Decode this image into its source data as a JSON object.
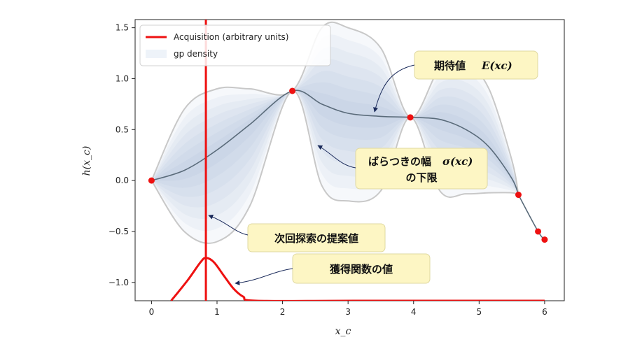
{
  "chart_data": {
    "type": "line",
    "title": "",
    "xlabel": "x_c",
    "ylabel": "h(x_c)",
    "xlim": [
      -0.25,
      6.3
    ],
    "ylim": [
      -1.18,
      1.58
    ],
    "xticks": [
      0,
      1,
      2,
      3,
      4,
      5,
      6
    ],
    "yticks": [
      -1.0,
      -0.5,
      0.0,
      0.5,
      1.0,
      1.5
    ],
    "xtick_labels": [
      "0",
      "1",
      "2",
      "3",
      "4",
      "5",
      "6"
    ],
    "ytick_labels": [
      "−1.0",
      "−0.5",
      "0.0",
      "0.5",
      "1.0",
      "1.5"
    ],
    "grid": false,
    "legend_position": "top-left",
    "legend": [
      "Acquisition (arbitrary units)",
      "gp density"
    ],
    "colors": {
      "acquisition": "#ee1111",
      "gp_mean": "#5a6b7a",
      "gp_density": "#8aa7cc",
      "bound": "#c8c8c8",
      "observation": "#ee1111",
      "callout_fill": "#fdf6c4",
      "callout_border": "#dfd8a0",
      "arrow": "#1a2a5a"
    },
    "series": [
      {
        "name": "gp density",
        "x": [
          0,
          0.5,
          1,
          1.5,
          2.15,
          2.6,
          3,
          3.5,
          3.95,
          4.4,
          4.8,
          5.15,
          5.5,
          5.6
        ],
        "mean": [
          0.0,
          0.1,
          0.3,
          0.55,
          0.88,
          0.75,
          0.66,
          0.63,
          0.62,
          0.6,
          0.5,
          0.33,
          0.02,
          -0.14
        ],
        "upper": [
          0.0,
          0.7,
          0.9,
          0.9,
          0.88,
          1.5,
          1.5,
          1.3,
          0.62,
          1.1,
          1.15,
          0.9,
          0.2,
          -0.14
        ],
        "lower": [
          0.0,
          -0.5,
          -0.6,
          -0.25,
          0.88,
          -0.05,
          -0.2,
          -0.1,
          0.62,
          -0.1,
          -0.13,
          -0.12,
          -0.12,
          -0.14
        ]
      },
      {
        "name": "Acquisition (arbitrary units)",
        "x": [
          0.3,
          0.55,
          0.75,
          0.83,
          0.95,
          1.1,
          1.25,
          1.4,
          1.6,
          3.1,
          6.0
        ],
        "y": [
          -1.18,
          -0.98,
          -0.8,
          -0.76,
          -0.8,
          -0.93,
          -1.06,
          -1.14,
          -1.18,
          -1.18,
          -1.18
        ]
      }
    ],
    "observations": {
      "x": [
        0.0,
        2.15,
        3.95,
        5.6,
        5.9,
        6.0
      ],
      "y": [
        0.0,
        0.88,
        0.62,
        -0.14,
        -0.5,
        -0.58
      ]
    },
    "proposal_x": 0.83,
    "annotations": [
      {
        "id": "mean",
        "text": "期待値",
        "math": "E(xc)"
      },
      {
        "id": "spread",
        "text": "ばらつきの幅",
        "math": "σ(xc)",
        "text2": "の下限"
      },
      {
        "id": "next",
        "text": "次回探索の提案値"
      },
      {
        "id": "acq",
        "text": "獲得関数の値"
      }
    ]
  }
}
